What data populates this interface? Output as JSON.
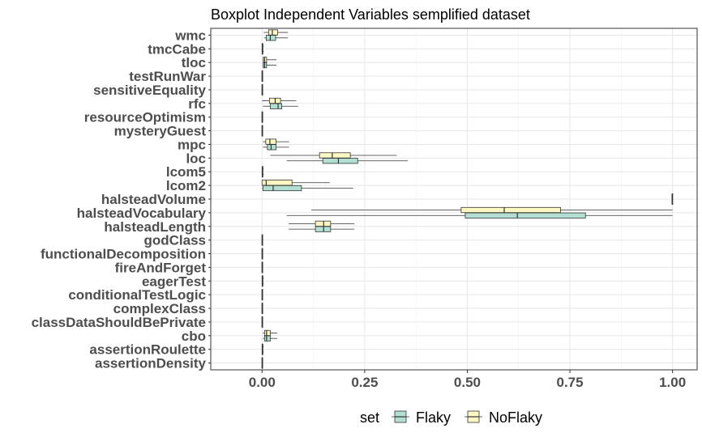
{
  "chart_data": {
    "type": "boxplot",
    "orientation": "horizontal",
    "title": "Boxplot Independent Variables semplified dataset",
    "xlim": [
      -0.125,
      1.06
    ],
    "x_ticks": [
      0.0,
      0.25,
      0.5,
      0.75,
      1.0
    ],
    "x_tick_labels": [
      "0.00",
      "0.25",
      "0.50",
      "0.75",
      "1.00"
    ],
    "grid": true,
    "legend": {
      "title": "set",
      "position": "bottom",
      "entries": [
        "Flaky",
        "NoFlaky"
      ]
    },
    "colors": {
      "Flaky": "#b3dfd3",
      "NoFlaky": "#fdf8c3"
    },
    "categories": [
      "wmc",
      "tmcCabe",
      "tloc",
      "testRunWar",
      "sensitiveEquality",
      "rfc",
      "resourceOptimism",
      "mysteryGuest",
      "mpc",
      "loc",
      "lcom5",
      "lcom2",
      "halsteadVolume",
      "halsteadVocabulary",
      "halsteadLength",
      "godClass",
      "functionalDecomposition",
      "fireAndForget",
      "eagerTest",
      "conditionalTestLogic",
      "complexClass",
      "classDataShouldBePrivate",
      "cbo",
      "assertionRoulette",
      "assertionDensity"
    ],
    "series": [
      {
        "name": "Flaky",
        "boxes": [
          [
            0.005,
            0.01,
            0.02,
            0.033,
            0.063
          ],
          [
            0.0,
            0.0,
            0.001,
            0.002,
            0.004
          ],
          [
            0.002,
            0.003,
            0.006,
            0.011,
            0.035
          ],
          [
            0.0,
            0.0,
            0.0,
            0.0,
            0.0
          ],
          [
            0.0,
            0.0,
            0.0,
            0.0,
            0.0
          ],
          [
            0.002,
            0.02,
            0.039,
            0.048,
            0.088
          ],
          [
            0.0,
            0.0,
            0.0,
            0.0,
            0.0
          ],
          [
            0.0,
            0.0,
            0.0,
            0.0,
            0.0
          ],
          [
            0.002,
            0.013,
            0.022,
            0.034,
            0.066
          ],
          [
            0.06,
            0.148,
            0.186,
            0.233,
            0.355
          ],
          [
            0.0,
            0.0,
            0.001,
            0.002,
            0.004
          ],
          [
            0.0,
            0.002,
            0.027,
            0.096,
            0.222
          ],
          [
            0.998,
            0.999,
            0.999,
            1.0,
            1.0
          ],
          [
            0.06,
            0.495,
            0.622,
            0.788,
            1.0
          ],
          [
            0.065,
            0.13,
            0.15,
            0.167,
            0.225
          ],
          [
            0.0,
            0.0,
            0.0,
            0.0,
            0.0
          ],
          [
            0.0,
            0.0,
            0.0,
            0.0,
            0.0
          ],
          [
            0.0,
            0.0,
            0.0,
            0.0,
            0.0
          ],
          [
            0.0,
            0.0,
            0.001,
            0.002,
            0.004
          ],
          [
            0.0,
            0.0,
            0.0,
            0.0,
            0.0
          ],
          [
            0.0,
            0.0,
            0.0,
            0.0,
            0.0
          ],
          [
            0.0,
            0.0,
            0.0,
            0.0,
            0.0
          ],
          [
            0.002,
            0.006,
            0.011,
            0.02,
            0.037
          ],
          [
            0.0,
            0.0,
            0.001,
            0.002,
            0.004
          ],
          [
            0.0,
            0.0,
            0.0,
            0.0,
            0.0
          ]
        ]
      },
      {
        "name": "NoFlaky",
        "boxes": [
          [
            0.004,
            0.016,
            0.025,
            0.038,
            0.063
          ],
          [
            0.0,
            0.0,
            0.001,
            0.002,
            0.004
          ],
          [
            0.002,
            0.003,
            0.006,
            0.011,
            0.035
          ],
          [
            0.0,
            0.0,
            0.0,
            0.0,
            0.0
          ],
          [
            0.0,
            0.0,
            0.0,
            0.0,
            0.0
          ],
          [
            0.0,
            0.018,
            0.032,
            0.045,
            0.083
          ],
          [
            0.0,
            0.0,
            0.0,
            0.0,
            0.0
          ],
          [
            0.0,
            0.0,
            0.0,
            0.0,
            0.0
          ],
          [
            0.002,
            0.009,
            0.019,
            0.034,
            0.066
          ],
          [
            0.02,
            0.14,
            0.171,
            0.215,
            0.328
          ],
          [
            0.0,
            0.0,
            0.001,
            0.002,
            0.004
          ],
          [
            0.0,
            0.0,
            0.01,
            0.073,
            0.165
          ],
          [
            0.998,
            0.999,
            0.999,
            1.0,
            1.0
          ],
          [
            0.12,
            0.485,
            0.59,
            0.727,
            1.0
          ],
          [
            0.065,
            0.13,
            0.15,
            0.167,
            0.225
          ],
          [
            0.0,
            0.0,
            0.0,
            0.0,
            0.0
          ],
          [
            0.0,
            0.0,
            0.0,
            0.0,
            0.0
          ],
          [
            0.0,
            0.0,
            0.0,
            0.0,
            0.0
          ],
          [
            0.0,
            0.0,
            0.001,
            0.002,
            0.004
          ],
          [
            0.0,
            0.0,
            0.0,
            0.0,
            0.0
          ],
          [
            0.0,
            0.0,
            0.0,
            0.0,
            0.0
          ],
          [
            0.0,
            0.0,
            0.0,
            0.0,
            0.0
          ],
          [
            0.002,
            0.006,
            0.011,
            0.02,
            0.037
          ],
          [
            0.0,
            0.0,
            0.001,
            0.002,
            0.004
          ],
          [
            0.0,
            0.0,
            0.0,
            0.0,
            0.0
          ]
        ]
      }
    ]
  }
}
